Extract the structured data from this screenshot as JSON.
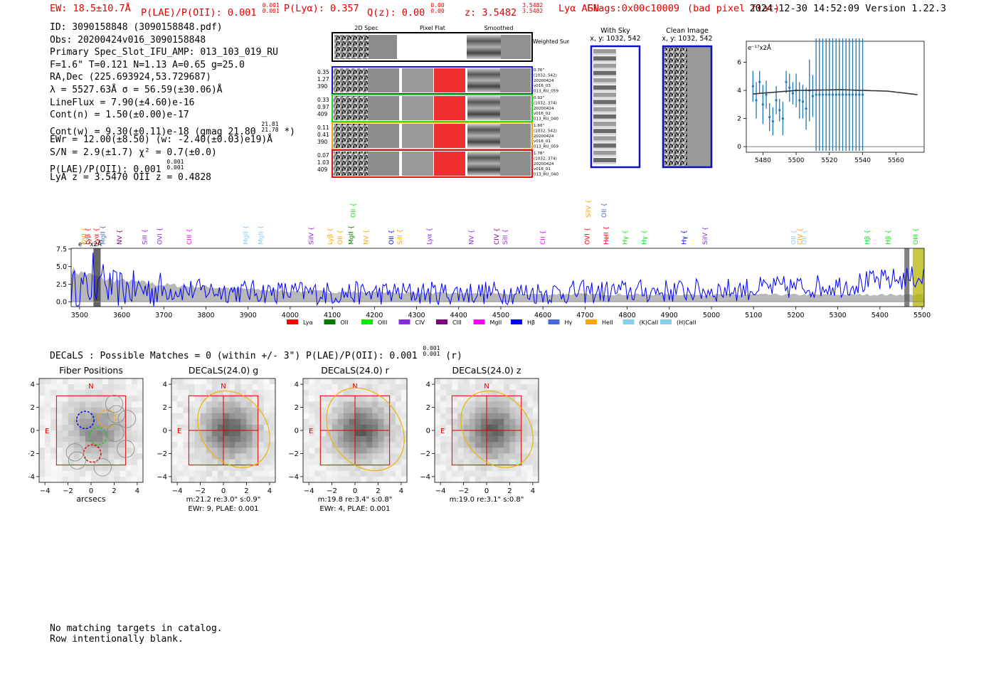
{
  "header": {
    "ew": "EW: 18.5±10.7Å",
    "plae_label": "P(LAE)/P(OII): 0.001",
    "plae_hi": "0.001",
    "plae_lo": "0.001",
    "plya": "P(Lyα): 0.357",
    "qz_label": "Q(z): 0.00",
    "qz_hi": "0.00",
    "qz_lo": "0.00",
    "z_label": "z: 3.5482",
    "z_hi": "3.5482",
    "z_lo": "3.5482",
    "class": "Lyα  AGN",
    "flags": "Flags:0x00c10009",
    "bad_pixel": "(bad pixel flat)",
    "timestamp": "2024-12-30 14:52:09",
    "version": "Version 1.22.3"
  },
  "info": {
    "id": "ID: 3090158848 (3090158848.pdf)",
    "obs": "Obs: 20200424v016_3090158848",
    "primary": "Primary Spec_Slot_IFU_AMP: 013_103_019_RU",
    "params": "F=1.6\"  T=0.121  N=1.13  A=0.65  g=25.0",
    "radec": "RA,Dec (225.693924,53.729687)",
    "lambda": "λ = 5527.63Å  σ = 56.59(±30.06)Å",
    "lineflux": "LineFlux = 7.90(±4.60)e-16",
    "contn": "Cont(n) = 1.50(±0.00)e-17",
    "contw": "Cont(w) = 9.30(±0.11)e-18 (gmag 21.80",
    "gmag_hi": "21.81",
    "gmag_lo": "21.78",
    "contw_tail": " *)",
    "ewr": "EWr = 12.00(±8.50) (w: -2.40(±0.03)e19)Å",
    "sn": "S/N = 2.9(±1.7)  χ² = 0.7(±0.0)",
    "plae": "P(LAE)/P(OII): 0.001",
    "plae_hi": "0.001",
    "plae_lo": "0.001",
    "lya": "LyA z = 3.5470  OII z = 0.4828"
  },
  "cutouts": {
    "col_titles": [
      "2D Spec",
      "Pixel Flat",
      "Smoothed"
    ],
    "weighted_sum": "Weighted Sum",
    "rows": [
      {
        "left": [
          "0.35",
          "1.27",
          "390"
        ],
        "right": [
          "0.76\"",
          "(1032, 542)",
          "20200424",
          "v016_03",
          "013_RU_059"
        ],
        "color": "#1010e0"
      },
      {
        "left": [
          "0.33",
          "0.97",
          "409"
        ],
        "right": [
          "0.92\"",
          "(1032, 374)",
          "20200424",
          "v016_02",
          "013_RU_040"
        ],
        "color": "#22cc22"
      },
      {
        "left": [
          "0.11",
          "0.41",
          "390"
        ],
        "right": [
          "1.60\"",
          "(1032, 542)",
          "20200424",
          "v016_01",
          "013_RU_059"
        ],
        "color": "#f0a020"
      },
      {
        "left": [
          "0.07",
          "1.03",
          "409"
        ],
        "right": [
          "1.78\"",
          "(1032, 374)",
          "20200424",
          "v016_01",
          "013_RU_040"
        ],
        "color": "#e01010"
      }
    ],
    "with_sky": [
      "With Sky",
      "x, y: 1032, 542"
    ],
    "clean_image": [
      "Clean Image",
      "x, y: 1032, 542"
    ]
  },
  "legend": [
    {
      "label": "Lyα",
      "color": "#ff0000"
    },
    {
      "label": "OII",
      "color": "#007a00"
    },
    {
      "label": "OIII",
      "color": "#00ee00"
    },
    {
      "label": "CIV",
      "color": "#8a2be2"
    },
    {
      "label": "CIII",
      "color": "#800080"
    },
    {
      "label": "MgII",
      "color": "#ff00ff"
    },
    {
      "label": "Hβ",
      "color": "#0000ff"
    },
    {
      "label": "Hγ",
      "color": "#4169e1"
    },
    {
      "label": "HeII",
      "color": "#ffa500"
    },
    {
      "label": "(K)CaII",
      "color": "#87ceeb"
    },
    {
      "label": "(H)CaII",
      "color": "#87ceeb"
    }
  ],
  "line_labels": [
    {
      "x": 3510,
      "label": "OVI",
      "color": "#ffa500",
      "row": 0
    },
    {
      "x": 3520,
      "label": "Lyβ",
      "color": "#ff0000",
      "row": 0
    },
    {
      "x": 3540,
      "label": "Lyα",
      "color": "#ff0000",
      "row": 0
    },
    {
      "x": 3555,
      "label": "MgII",
      "color": "#4169e1",
      "row": 0
    },
    {
      "x": 3595,
      "label": "NV",
      "color": "#800080",
      "row": 0
    },
    {
      "x": 3655,
      "label": "SiII",
      "color": "#8a2be2",
      "row": 0
    },
    {
      "x": 3690,
      "label": "OVI",
      "color": "#8a2be2",
      "row": 0
    },
    {
      "x": 3760,
      "label": "CIII",
      "color": "#ff00ff",
      "row": 0
    },
    {
      "x": 3895,
      "label": "MgII",
      "color": "#87ceeb",
      "row": 0
    },
    {
      "x": 3930,
      "label": "MgII",
      "color": "#87ceeb",
      "row": 0
    },
    {
      "x": 4050,
      "label": "SiIV",
      "color": "#8a2be2",
      "row": 0
    },
    {
      "x": 4095,
      "label": "Lyβ",
      "color": "#ffa500",
      "row": 0
    },
    {
      "x": 4118,
      "label": "OII",
      "color": "#ffa500",
      "row": 0
    },
    {
      "x": 4145,
      "label": "MgII",
      "color": "#007a00",
      "row": 0
    },
    {
      "x": 4150,
      "label": "OII",
      "color": "#00ee00",
      "row": 1
    },
    {
      "x": 4180,
      "label": "NV",
      "color": "#ffa500",
      "row": 0
    },
    {
      "x": 4240,
      "label": "OII",
      "color": "#0000ff",
      "row": 0
    },
    {
      "x": 4260,
      "label": "SiII",
      "color": "#ffa500",
      "row": 0
    },
    {
      "x": 4330,
      "label": "Lyα",
      "color": "#8a2be2",
      "row": 0
    },
    {
      "x": 4430,
      "label": "NV",
      "color": "#8a2be2",
      "row": 0
    },
    {
      "x": 4490,
      "label": "CIV",
      "color": "#800080",
      "row": 0
    },
    {
      "x": 4510,
      "label": "SiII",
      "color": "#8a2be2",
      "row": 0
    },
    {
      "x": 4600,
      "label": "CII",
      "color": "#ff00ff",
      "row": 0
    },
    {
      "x": 4705,
      "label": "OVI",
      "color": "#ff0000",
      "row": 0
    },
    {
      "x": 4708,
      "label": "SiIV",
      "color": "#ffa500",
      "row": 1
    },
    {
      "x": 4745,
      "label": "OII",
      "color": "#4169e1",
      "row": 1
    },
    {
      "x": 4750,
      "label": "HeII",
      "color": "#ff0000",
      "row": 0
    },
    {
      "x": 4795,
      "label": "Hγ",
      "color": "#00ee00",
      "row": 0
    },
    {
      "x": 4840,
      "label": "Hγ",
      "color": "#00ee00",
      "row": 0
    },
    {
      "x": 4935,
      "label": "Hγ",
      "color": "#0000ff",
      "row": 0
    },
    {
      "x": 4985,
      "label": "SiIV",
      "color": "#8a2be2",
      "row": 0
    },
    {
      "x": 5195,
      "label": "OII",
      "color": "#87ceeb",
      "row": 0
    },
    {
      "x": 5210,
      "label": "CIV",
      "color": "#ffa500",
      "row": 0
    },
    {
      "x": 5220,
      "label": "OII",
      "color": "#87ceeb",
      "row": 0
    },
    {
      "x": 5370,
      "label": "Hβ",
      "color": "#00ee00",
      "row": 0
    },
    {
      "x": 5420,
      "label": "Hβ",
      "color": "#00ee00",
      "row": 0
    },
    {
      "x": 5485,
      "label": "OIII",
      "color": "#00ee00",
      "row": 0
    }
  ],
  "decals": {
    "header": "DECaLS : Possible Matches = 0 (within +/- 3\")  P(LAE)/P(OII): 0.001",
    "header_hi": "0.001",
    "header_lo": "0.001",
    "header_tail": " (r)",
    "panels": [
      {
        "title": "Fiber Positions",
        "xlabel": "arcsecs",
        "cap1": "",
        "cap2": ""
      },
      {
        "title": "DECaLS(24.0) g",
        "xlabel": "",
        "cap1": "m:21.2  re:3.0\"  s:0.9\"",
        "cap2": "EWr: 9, PLAE: 0.001"
      },
      {
        "title": "DECaLS(24.0) r",
        "xlabel": "",
        "cap1": "m:19.8  re:3.4\"  s:0.8\"",
        "cap2": "EWr: 4, PLAE: 0.001"
      },
      {
        "title": "DECaLS(24.0) z",
        "xlabel": "",
        "cap1": "m:19.0  re:3.1\"  s:0.8\"",
        "cap2": ""
      }
    ],
    "ticks": [
      "−4",
      "−2",
      "0",
      "2",
      "4"
    ],
    "compass_n": "N",
    "compass_e": "E"
  },
  "footer": {
    "line1": "No matching targets in catalog.",
    "line2": "Row intentionally blank."
  },
  "chart_data": [
    {
      "type": "line",
      "title": "",
      "unit_label": "e⁻¹⁷x2Å",
      "xlabel": "",
      "ylabel": "",
      "xlim": [
        3480,
        5505
      ],
      "ylim": [
        -0.7,
        7.6
      ],
      "xticks": [
        3500,
        3600,
        3700,
        3800,
        3900,
        4000,
        4100,
        4200,
        4300,
        4400,
        4500,
        4600,
        4700,
        4800,
        4900,
        5000,
        5100,
        5200,
        5300,
        5400,
        5500
      ],
      "yticks": [
        0.0,
        2.5,
        5.0,
        7.5
      ],
      "series": [
        {
          "name": "flux",
          "color": "#0000ff",
          "x_start": 3480,
          "x_step": 4,
          "trend": [
            [
              3480,
              2.0
            ],
            [
              3700,
              1.7
            ],
            [
              4100,
              1.2
            ],
            [
              4600,
              1.3
            ],
            [
              5000,
              1.6
            ],
            [
              5300,
              2.3
            ],
            [
              5505,
              3.6
            ]
          ]
        },
        {
          "name": "error",
          "color": "#aaaaaa",
          "trend": [
            [
              3480,
              4.5
            ],
            [
              3560,
              3.2
            ],
            [
              3700,
              2.4
            ],
            [
              4000,
              1.5
            ],
            [
              4500,
              1.1
            ],
            [
              5000,
              1.0
            ],
            [
              5505,
              1.0
            ]
          ]
        }
      ],
      "highlight_bands": [
        {
          "x0": 3533,
          "x1": 3550,
          "color": "#333333"
        },
        {
          "x0": 5458,
          "x1": 5470,
          "color": "#555555"
        },
        {
          "x0": 5478,
          "x1": 5505,
          "color": "#b5b500"
        }
      ]
    },
    {
      "type": "scatter",
      "title": "",
      "unit_label": "e⁻¹⁷x2Å",
      "xlabel": "",
      "ylabel": "",
      "xlim": [
        5470,
        5577
      ],
      "ylim": [
        -0.4,
        7.5
      ],
      "xticks": [
        5480,
        5500,
        5520,
        5540,
        5560
      ],
      "yticks": [
        0,
        2,
        4,
        6
      ],
      "points": [
        {
          "x": 5474,
          "y": 4.3,
          "err": 1.1
        },
        {
          "x": 5476,
          "y": 3.3,
          "err": 1.3
        },
        {
          "x": 5478,
          "y": 4.6,
          "err": 0.8
        },
        {
          "x": 5480,
          "y": 3.0,
          "err": 1.4
        },
        {
          "x": 5482,
          "y": 3.7,
          "err": 1.0
        },
        {
          "x": 5484,
          "y": 2.1,
          "err": 1.0
        },
        {
          "x": 5486,
          "y": 1.8,
          "err": 1.0
        },
        {
          "x": 5488,
          "y": 3.3,
          "err": 1.0
        },
        {
          "x": 5490,
          "y": 2.6,
          "err": 0.8
        },
        {
          "x": 5492,
          "y": 2.0,
          "err": 1.2
        },
        {
          "x": 5494,
          "y": 4.6,
          "err": 0.8
        },
        {
          "x": 5496,
          "y": 4.2,
          "err": 1.0
        },
        {
          "x": 5498,
          "y": 3.8,
          "err": 0.8
        },
        {
          "x": 5500,
          "y": 4.0,
          "err": 1.2
        },
        {
          "x": 5502,
          "y": 3.3,
          "err": 1.3
        },
        {
          "x": 5504,
          "y": 3.2,
          "err": 1.2
        },
        {
          "x": 5506,
          "y": 2.7,
          "err": 1.5
        },
        {
          "x": 5508,
          "y": 4.0,
          "err": 2.2
        },
        {
          "x": 5510,
          "y": 3.6,
          "err": 1.5
        },
        {
          "x": 5512,
          "y": 3.7,
          "err": 4.0
        },
        {
          "x": 5514,
          "y": 3.7,
          "err": 4.0
        },
        {
          "x": 5516,
          "y": 3.7,
          "err": 4.0
        },
        {
          "x": 5518,
          "y": 3.7,
          "err": 4.0
        },
        {
          "x": 5520,
          "y": 3.7,
          "err": 4.0
        },
        {
          "x": 5522,
          "y": 3.7,
          "err": 4.0
        },
        {
          "x": 5524,
          "y": 3.7,
          "err": 4.0
        },
        {
          "x": 5526,
          "y": 3.7,
          "err": 4.0
        },
        {
          "x": 5528,
          "y": 3.7,
          "err": 4.0
        },
        {
          "x": 5530,
          "y": 3.7,
          "err": 4.0
        },
        {
          "x": 5532,
          "y": 3.7,
          "err": 4.0
        },
        {
          "x": 5534,
          "y": 3.7,
          "err": 4.0
        },
        {
          "x": 5536,
          "y": 3.7,
          "err": 4.0
        },
        {
          "x": 5538,
          "y": 3.7,
          "err": 4.0
        },
        {
          "x": 5540,
          "y": 3.7,
          "err": 4.0
        }
      ],
      "fit": [
        [
          5474,
          3.75
        ],
        [
          5500,
          4.0
        ],
        [
          5527,
          4.05
        ],
        [
          5555,
          3.95
        ],
        [
          5573,
          3.7
        ]
      ]
    }
  ]
}
